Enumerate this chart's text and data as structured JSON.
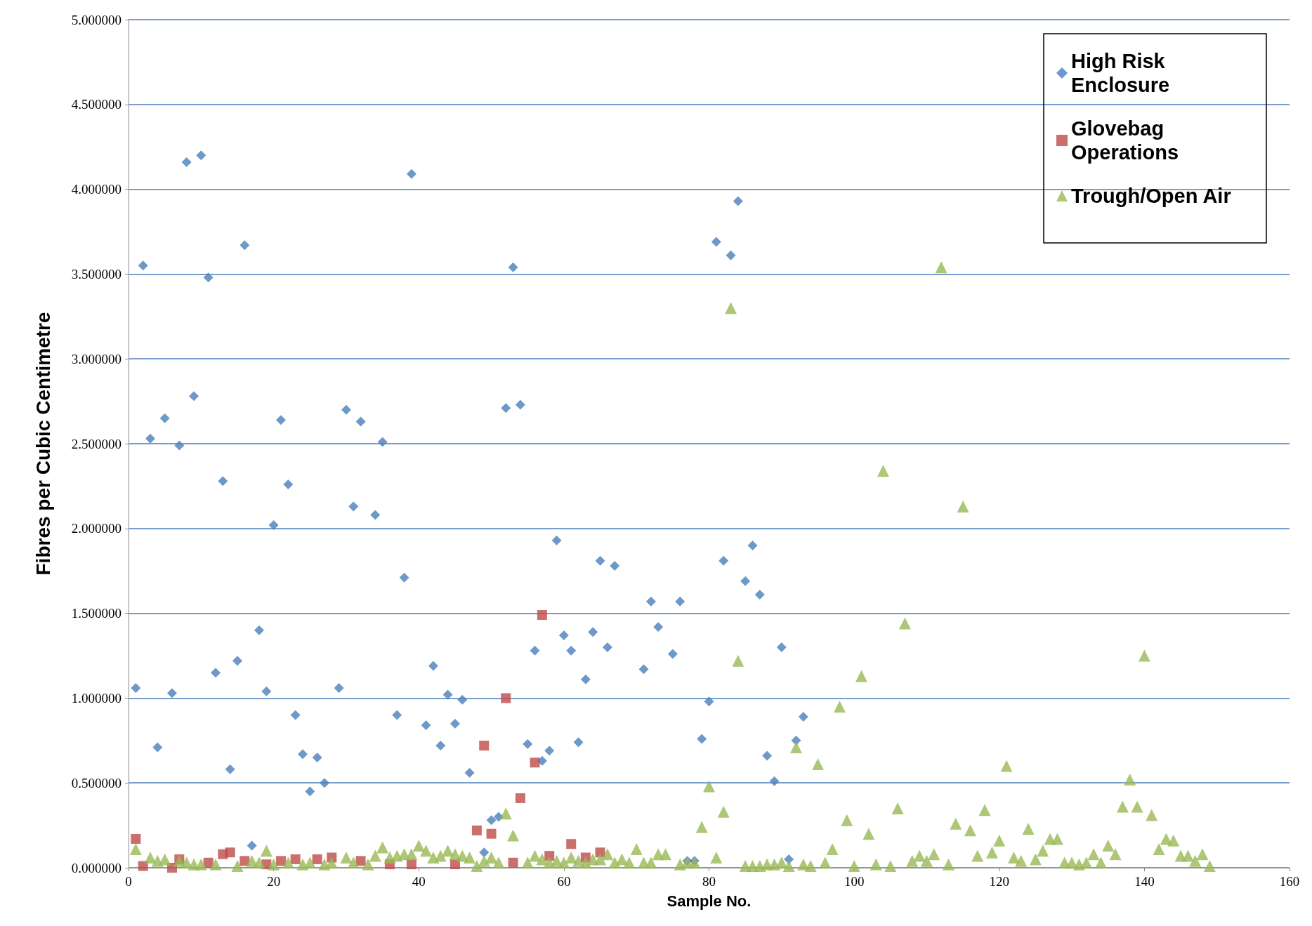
{
  "chart_data": {
    "type": "scatter",
    "xlabel": "Sample No.",
    "ylabel": "Fibres per Cubic Centimetre",
    "xlim": [
      0,
      160
    ],
    "xticks": [
      0,
      20,
      40,
      60,
      80,
      100,
      120,
      140,
      160
    ],
    "ylim": [
      0,
      5
    ],
    "yticks": [
      {
        "value": 0,
        "label": "0.000000"
      },
      {
        "value": 0.5,
        "label": "0.500000"
      },
      {
        "value": 1,
        "label": "1.000000"
      },
      {
        "value": 1.5,
        "label": "1.500000"
      },
      {
        "value": 2,
        "label": "2.000000"
      },
      {
        "value": 2.5,
        "label": "2.500000"
      },
      {
        "value": 3,
        "label": "3.000000"
      },
      {
        "value": 3.5,
        "label": "3.500000"
      },
      {
        "value": 4,
        "label": "4.000000"
      },
      {
        "value": 4.5,
        "label": "4.500000"
      },
      {
        "value": 5,
        "label": "5.000000"
      }
    ],
    "grid": "y",
    "legend": "top right",
    "series": [
      {
        "name": "High Risk Enclosure",
        "color": "#4a7ebb",
        "marker": "diamond",
        "x": [
          1,
          2,
          3,
          4,
          5,
          6,
          7,
          8,
          9,
          10,
          11,
          12,
          13,
          14,
          15,
          16,
          17,
          18,
          19,
          20,
          21,
          22,
          23,
          24,
          25,
          26,
          27,
          29,
          30,
          31,
          32,
          34,
          35,
          37,
          38,
          39,
          41,
          42,
          43,
          44,
          45,
          46,
          47,
          49,
          50,
          51,
          52,
          53,
          54,
          55,
          56,
          57,
          58,
          59,
          60,
          61,
          62,
          63,
          64,
          65,
          66,
          67,
          71,
          72,
          73,
          75,
          76,
          77,
          78,
          79,
          80,
          81,
          82,
          83,
          84,
          85,
          86,
          87,
          88,
          89,
          90,
          91,
          92,
          93
        ],
        "values": [
          1.06,
          3.55,
          2.53,
          0.71,
          2.65,
          1.03,
          2.49,
          4.16,
          2.78,
          4.2,
          3.48,
          1.15,
          2.28,
          0.58,
          1.22,
          3.67,
          0.13,
          1.4,
          1.04,
          2.02,
          2.64,
          2.26,
          0.9,
          0.67,
          0.45,
          0.65,
          0.5,
          1.06,
          2.7,
          2.13,
          2.63,
          2.08,
          2.51,
          0.9,
          1.71,
          4.09,
          0.84,
          1.19,
          0.72,
          1.02,
          0.85,
          0.99,
          0.56,
          0.09,
          0.28,
          0.3,
          2.71,
          3.54,
          2.73,
          0.73,
          1.28,
          0.63,
          0.69,
          1.93,
          1.37,
          1.28,
          0.74,
          1.11,
          1.39,
          1.81,
          1.3,
          1.78,
          1.17,
          1.57,
          1.42,
          1.26,
          1.57,
          0.04,
          0.04,
          0.76,
          0.98,
          3.69,
          1.81,
          3.61,
          3.93,
          1.69,
          1.9,
          1.61,
          0.66,
          0.51,
          1.3,
          0.05,
          0.75,
          0.89
        ]
      },
      {
        "name": "Glovebag Operations",
        "color": "#be4b48",
        "marker": "square",
        "x": [
          1,
          2,
          6,
          7,
          11,
          13,
          14,
          16,
          19,
          21,
          23,
          26,
          28,
          32,
          36,
          39,
          45,
          48,
          49,
          50,
          52,
          53,
          54,
          56,
          57,
          58,
          61,
          63,
          65
        ],
        "values": [
          0.17,
          0.01,
          0.0,
          0.05,
          0.03,
          0.08,
          0.09,
          0.04,
          0.02,
          0.04,
          0.05,
          0.05,
          0.06,
          0.04,
          0.02,
          0.02,
          0.02,
          0.22,
          0.72,
          0.2,
          1.0,
          0.03,
          0.41,
          0.62,
          1.49,
          0.07,
          0.14,
          0.06,
          0.09
        ]
      },
      {
        "name": "Trough/Open Air",
        "color": "#98b954",
        "marker": "triangle",
        "x": [
          1,
          3,
          4,
          5,
          7,
          8,
          9,
          10,
          12,
          15,
          17,
          18,
          19,
          20,
          22,
          24,
          25,
          27,
          28,
          30,
          31,
          33,
          34,
          35,
          36,
          37,
          38,
          39,
          40,
          41,
          42,
          43,
          44,
          45,
          46,
          47,
          48,
          49,
          50,
          51,
          52,
          53,
          55,
          56,
          57,
          58,
          59,
          60,
          61,
          62,
          63,
          64,
          65,
          66,
          67,
          68,
          69,
          70,
          71,
          72,
          73,
          74,
          76,
          77,
          78,
          79,
          80,
          81,
          82,
          83,
          84,
          85,
          86,
          87,
          88,
          89,
          90,
          91,
          92,
          93,
          94,
          95,
          96,
          97,
          98,
          99,
          100,
          101,
          102,
          103,
          104,
          105,
          106,
          107,
          108,
          109,
          110,
          111,
          112,
          113,
          114,
          115,
          116,
          117,
          118,
          119,
          120,
          121,
          122,
          123,
          124,
          125,
          126,
          127,
          128,
          129,
          130,
          131,
          132,
          133,
          134,
          135,
          136,
          137,
          138,
          139,
          140,
          141,
          142,
          143,
          144,
          145,
          146,
          147,
          148,
          149
        ],
        "values": [
          0.11,
          0.06,
          0.04,
          0.05,
          0.04,
          0.03,
          0.02,
          0.02,
          0.02,
          0.01,
          0.04,
          0.03,
          0.1,
          0.02,
          0.03,
          0.02,
          0.03,
          0.02,
          0.03,
          0.06,
          0.03,
          0.02,
          0.07,
          0.12,
          0.06,
          0.07,
          0.08,
          0.08,
          0.13,
          0.1,
          0.06,
          0.07,
          0.1,
          0.08,
          0.07,
          0.06,
          0.01,
          0.04,
          0.06,
          0.03,
          0.32,
          0.19,
          0.03,
          0.07,
          0.05,
          0.03,
          0.04,
          0.03,
          0.06,
          0.04,
          0.03,
          0.05,
          0.05,
          0.08,
          0.03,
          0.05,
          0.03,
          0.11,
          0.03,
          0.03,
          0.08,
          0.08,
          0.02,
          0.03,
          0.03,
          0.24,
          0.48,
          0.06,
          0.33,
          3.3,
          1.22,
          0.01,
          0.01,
          0.01,
          0.02,
          0.02,
          0.03,
          0.01,
          0.71,
          0.02,
          0.01,
          0.61,
          0.03,
          0.11,
          0.95,
          0.28,
          0.01,
          1.13,
          0.2,
          0.02,
          2.34,
          0.01,
          0.35,
          1.44,
          0.04,
          0.07,
          0.04,
          0.08,
          3.54,
          0.02,
          0.26,
          2.13,
          0.22,
          0.07,
          0.34,
          0.09,
          0.16,
          0.6,
          0.06,
          0.04,
          0.23,
          0.05,
          0.1,
          0.17,
          0.17,
          0.03,
          0.03,
          0.02,
          0.03,
          0.08,
          0.03,
          0.13,
          0.08,
          0.36,
          0.52,
          0.36,
          1.25,
          0.31,
          0.11,
          0.17,
          0.16,
          0.07,
          0.07,
          0.04,
          0.08,
          0.01
        ]
      }
    ]
  }
}
